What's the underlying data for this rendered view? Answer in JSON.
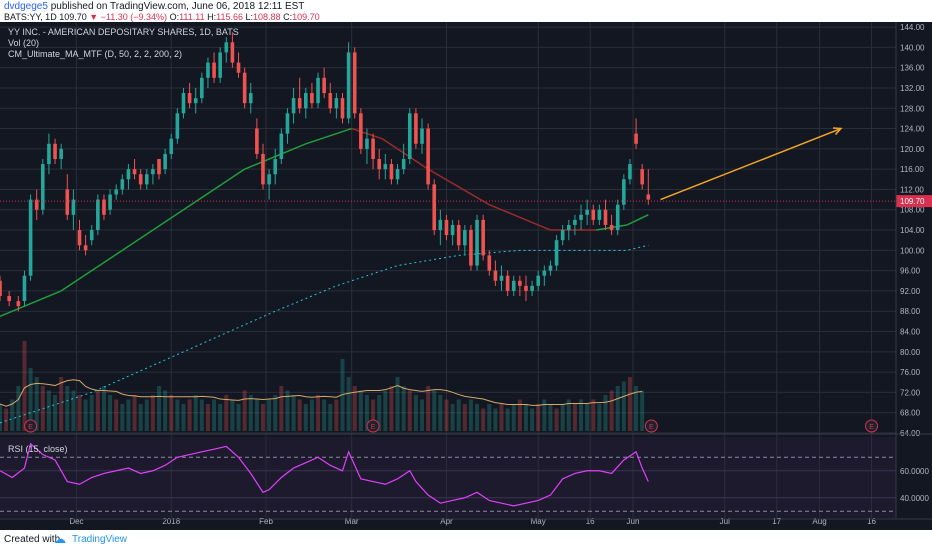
{
  "header": {
    "author": "dvdgege5",
    "published_text": "published on TradingView.com, June 06, 2018 12:11 EST",
    "symbol": "BATS:YY, 1D",
    "last": "109.70",
    "change": "▼ −11.30 (−9.34%)",
    "o_label": "O:",
    "o_val": "111.11",
    "h_label": "H:",
    "h_val": "115.66",
    "l_label": "L:",
    "l_val": "108.88",
    "c_label": "C:",
    "c_val": "109.70"
  },
  "legend": {
    "title": "YY INC. - AMERICAN DEPOSITARY SHARES, 1D, BATS",
    "vol": "Vol (20)",
    "ma": "CM_Ultimate_MA_MTF (D, 50, 2, 2, 200, 2)",
    "rsi": "RSI (15, close)"
  },
  "footer": {
    "created_with": "Created with",
    "brand": "TradingView"
  },
  "colors": {
    "bg": "#131722",
    "grid": "#2a2e39",
    "up": "#26a69a",
    "down": "#ef5350",
    "ma50": "#1f9e3a",
    "ma200": "#26c6da",
    "rsi": "#e040fb",
    "arrow": "#f5a623",
    "price_line": "#d9304f"
  },
  "chart_data": {
    "type": "candlestick",
    "title": "YY INC. - AMERICAN DEPOSITARY SHARES, 1D, BATS",
    "price_ticks": [
      "144.00",
      "140.00",
      "136.00",
      "132.00",
      "128.00",
      "124.00",
      "120.00",
      "116.00",
      "112.00",
      "108.00",
      "104.00",
      "100.00",
      "96.00",
      "92.00",
      "88.00",
      "84.00",
      "80.00",
      "76.00",
      "72.00",
      "68.00",
      "64.00"
    ],
    "price_range": [
      64,
      145
    ],
    "last_price": "109.70",
    "rsi_ticks": [
      "60.0000",
      "40.0000"
    ],
    "x_ticks": [
      "Dec",
      "2018",
      "Feb",
      "Mar",
      "Apr",
      "May",
      "16",
      "Jun",
      "Jul",
      "17",
      "Aug",
      "16"
    ],
    "x_tick_days": [
      25,
      56,
      87,
      115,
      146,
      176,
      193,
      207,
      237,
      254,
      268,
      285
    ],
    "earnings_days": [
      10,
      122,
      213,
      285
    ],
    "earnings_label": "E",
    "arrow": {
      "from_day": 216,
      "from_price": 110,
      "to_day": 275,
      "to_price": 124
    },
    "candles_sparse_ohlc": [
      [
        0,
        94,
        95,
        90,
        91
      ],
      [
        3,
        91,
        92,
        89,
        90
      ],
      [
        6,
        90,
        91,
        88,
        89
      ],
      [
        8,
        90,
        96,
        89,
        95
      ],
      [
        10,
        95,
        111,
        94,
        110
      ],
      [
        12,
        110,
        112,
        106,
        108
      ],
      [
        14,
        108,
        118,
        107,
        117
      ],
      [
        16,
        117,
        123,
        115,
        121
      ],
      [
        18,
        121,
        122,
        117,
        118
      ],
      [
        20,
        118,
        121,
        116,
        120
      ],
      [
        22,
        112,
        115,
        106,
        107
      ],
      [
        24,
        107,
        112,
        104,
        110
      ],
      [
        26,
        104,
        106,
        100,
        101
      ],
      [
        28,
        101,
        103,
        99,
        100
      ],
      [
        30,
        102,
        105,
        101,
        104
      ],
      [
        32,
        104,
        111,
        103,
        110
      ],
      [
        34,
        110,
        111,
        106,
        107
      ],
      [
        36,
        108,
        112,
        107,
        111
      ],
      [
        38,
        111,
        113,
        110,
        112
      ],
      [
        40,
        112,
        115,
        111,
        114
      ],
      [
        42,
        114,
        117,
        112,
        116
      ],
      [
        44,
        116,
        118,
        114,
        115
      ],
      [
        46,
        115,
        116,
        112,
        113
      ],
      [
        48,
        113,
        116,
        112,
        115
      ],
      [
        50,
        115,
        117,
        113,
        116
      ],
      [
        52,
        118,
        117,
        114,
        115
      ],
      [
        54,
        116,
        120,
        115,
        119
      ],
      [
        56,
        119,
        123,
        118,
        122
      ],
      [
        58,
        122,
        128,
        121,
        127
      ],
      [
        60,
        127,
        132,
        126,
        131
      ],
      [
        62,
        131,
        133,
        128,
        129
      ],
      [
        64,
        129,
        132,
        127,
        130
      ],
      [
        66,
        130,
        135,
        129,
        134
      ],
      [
        68,
        134,
        138,
        132,
        137
      ],
      [
        70,
        137,
        139,
        133,
        134
      ],
      [
        72,
        134,
        140,
        133,
        139
      ],
      [
        74,
        139,
        142,
        137,
        141
      ],
      [
        76,
        141,
        143,
        136,
        137
      ],
      [
        78,
        137,
        139,
        134,
        135
      ],
      [
        80,
        135,
        136,
        128,
        129
      ],
      [
        82,
        129,
        133,
        127,
        131
      ],
      [
        84,
        124,
        126,
        118,
        119
      ],
      [
        86,
        119,
        121,
        112,
        113
      ],
      [
        88,
        113,
        116,
        110,
        115
      ],
      [
        90,
        115,
        120,
        113,
        118
      ],
      [
        92,
        118,
        124,
        117,
        123
      ],
      [
        94,
        123,
        128,
        121,
        127
      ],
      [
        96,
        127,
        132,
        125,
        130
      ],
      [
        98,
        130,
        134,
        127,
        128
      ],
      [
        100,
        128,
        132,
        126,
        131
      ],
      [
        102,
        131,
        133,
        128,
        129
      ],
      [
        104,
        129,
        135,
        128,
        134
      ],
      [
        106,
        134,
        136,
        130,
        131
      ],
      [
        108,
        131,
        133,
        127,
        128
      ],
      [
        110,
        128,
        131,
        126,
        130
      ],
      [
        112,
        130,
        131,
        125,
        126
      ],
      [
        114,
        126,
        141,
        125,
        139
      ],
      [
        116,
        139,
        140,
        126,
        127
      ],
      [
        118,
        127,
        128,
        119,
        120
      ],
      [
        120,
        120,
        124,
        117,
        122
      ],
      [
        122,
        122,
        123,
        116,
        118
      ],
      [
        124,
        118,
        120,
        114,
        116
      ],
      [
        126,
        116,
        119,
        114,
        117
      ],
      [
        128,
        117,
        118,
        113,
        114
      ],
      [
        130,
        114,
        117,
        113,
        116
      ],
      [
        132,
        116,
        121,
        115,
        118
      ],
      [
        134,
        118,
        128,
        117,
        127
      ],
      [
        136,
        127,
        128,
        120,
        121
      ],
      [
        138,
        121,
        126,
        119,
        124
      ],
      [
        140,
        124,
        125,
        112,
        113
      ],
      [
        142,
        113,
        114,
        103,
        104
      ],
      [
        144,
        104,
        108,
        101,
        106
      ],
      [
        146,
        106,
        107,
        102,
        103
      ],
      [
        148,
        103,
        106,
        101,
        105
      ],
      [
        150,
        105,
        106,
        100,
        101
      ],
      [
        152,
        101,
        105,
        99,
        104
      ],
      [
        154,
        104,
        105,
        96,
        97
      ],
      [
        156,
        97,
        107,
        96,
        106
      ],
      [
        158,
        106,
        107,
        98,
        99
      ],
      [
        160,
        99,
        100,
        95,
        96
      ],
      [
        162,
        96,
        98,
        93,
        94
      ],
      [
        164,
        94,
        97,
        92,
        95
      ],
      [
        166,
        95,
        96,
        91,
        92
      ],
      [
        168,
        92,
        95,
        91,
        94
      ],
      [
        170,
        94,
        95,
        91,
        93
      ],
      [
        172,
        93,
        95,
        90,
        92
      ],
      [
        174,
        92,
        94,
        91,
        93
      ],
      [
        176,
        93,
        96,
        92,
        95
      ],
      [
        178,
        95,
        97,
        93,
        96
      ],
      [
        180,
        96,
        98,
        95,
        97
      ],
      [
        182,
        97,
        103,
        96,
        102
      ],
      [
        184,
        102,
        105,
        101,
        104
      ],
      [
        186,
        104,
        106,
        102,
        105
      ],
      [
        188,
        105,
        107,
        103,
        106
      ],
      [
        190,
        106,
        109,
        104,
        107
      ],
      [
        192,
        107,
        110,
        105,
        108
      ],
      [
        194,
        108,
        109,
        105,
        106
      ],
      [
        196,
        106,
        109,
        105,
        108
      ],
      [
        198,
        108,
        110,
        104,
        105
      ],
      [
        200,
        105,
        107,
        103,
        104
      ],
      [
        202,
        104,
        110,
        103,
        109
      ],
      [
        204,
        109,
        115,
        108,
        114
      ],
      [
        206,
        114,
        118,
        113,
        117
      ],
      [
        208,
        123,
        126,
        120,
        121
      ],
      [
        210,
        116,
        117,
        112,
        113
      ],
      [
        212,
        111,
        116,
        109,
        110
      ]
    ],
    "ma50": [
      [
        0,
        87
      ],
      [
        20,
        92
      ],
      [
        40,
        100
      ],
      [
        60,
        108
      ],
      [
        80,
        116
      ],
      [
        100,
        121
      ],
      [
        115,
        124
      ],
      [
        125,
        122
      ],
      [
        140,
        116
      ],
      [
        160,
        109
      ],
      [
        180,
        104
      ],
      [
        195,
        104
      ],
      [
        205,
        105
      ],
      [
        212,
        107
      ]
    ],
    "ma200": [
      [
        0,
        66
      ],
      [
        30,
        72
      ],
      [
        60,
        80
      ],
      [
        90,
        88
      ],
      [
        110,
        93
      ],
      [
        130,
        97
      ],
      [
        150,
        99
      ],
      [
        170,
        100
      ],
      [
        190,
        100
      ],
      [
        205,
        100
      ],
      [
        212,
        101
      ]
    ],
    "volume_relative": [
      0.3,
      0.25,
      0.35,
      0.5,
      1.0,
      0.7,
      0.6,
      0.5,
      0.45,
      0.4,
      0.6,
      0.5,
      0.45,
      0.4,
      0.35,
      0.4,
      0.45,
      0.5,
      0.4,
      0.35,
      0.3,
      0.35,
      0.4,
      0.3,
      0.35,
      0.4,
      0.5,
      0.45,
      0.4,
      0.35,
      0.3,
      0.35,
      0.4,
      0.35,
      0.3,
      0.35,
      0.3,
      0.4,
      0.35,
      0.3,
      0.45,
      0.4,
      0.35,
      0.3,
      0.35,
      0.4,
      0.5,
      0.45,
      0.4,
      0.35,
      0.3,
      0.35,
      0.4,
      0.35,
      0.3,
      0.35,
      0.8,
      0.6,
      0.5,
      0.45,
      0.4,
      0.35,
      0.4,
      0.45,
      0.5,
      0.6,
      0.5,
      0.45,
      0.4,
      0.35,
      0.5,
      0.45,
      0.4,
      0.35,
      0.3,
      0.35,
      0.3,
      0.35,
      0.3,
      0.25,
      0.3,
      0.25,
      0.3,
      0.25,
      0.3,
      0.35,
      0.3,
      0.25,
      0.3,
      0.35,
      0.3,
      0.25,
      0.3,
      0.35,
      0.3,
      0.35,
      0.3,
      0.35,
      0.3,
      0.4,
      0.45,
      0.5,
      0.55,
      0.6,
      0.5,
      0.45
    ],
    "rsi": [
      [
        0,
        60
      ],
      [
        4,
        55
      ],
      [
        8,
        62
      ],
      [
        10,
        80
      ],
      [
        14,
        72
      ],
      [
        18,
        68
      ],
      [
        22,
        52
      ],
      [
        26,
        50
      ],
      [
        30,
        55
      ],
      [
        34,
        58
      ],
      [
        38,
        60
      ],
      [
        42,
        62
      ],
      [
        46,
        58
      ],
      [
        50,
        60
      ],
      [
        54,
        64
      ],
      [
        58,
        70
      ],
      [
        62,
        72
      ],
      [
        66,
        74
      ],
      [
        70,
        76
      ],
      [
        74,
        78
      ],
      [
        78,
        70
      ],
      [
        82,
        58
      ],
      [
        86,
        44
      ],
      [
        88,
        46
      ],
      [
        92,
        55
      ],
      [
        96,
        62
      ],
      [
        100,
        66
      ],
      [
        104,
        70
      ],
      [
        108,
        64
      ],
      [
        112,
        60
      ],
      [
        114,
        74
      ],
      [
        118,
        54
      ],
      [
        122,
        52
      ],
      [
        126,
        50
      ],
      [
        130,
        54
      ],
      [
        134,
        60
      ],
      [
        136,
        52
      ],
      [
        140,
        42
      ],
      [
        144,
        36
      ],
      [
        148,
        38
      ],
      [
        152,
        40
      ],
      [
        156,
        44
      ],
      [
        160,
        38
      ],
      [
        164,
        36
      ],
      [
        168,
        34
      ],
      [
        172,
        36
      ],
      [
        176,
        38
      ],
      [
        180,
        42
      ],
      [
        184,
        54
      ],
      [
        188,
        58
      ],
      [
        192,
        60
      ],
      [
        196,
        60
      ],
      [
        200,
        58
      ],
      [
        204,
        68
      ],
      [
        208,
        74
      ],
      [
        210,
        62
      ],
      [
        212,
        52
      ]
    ],
    "rsi_range": [
      25,
      85
    ]
  }
}
